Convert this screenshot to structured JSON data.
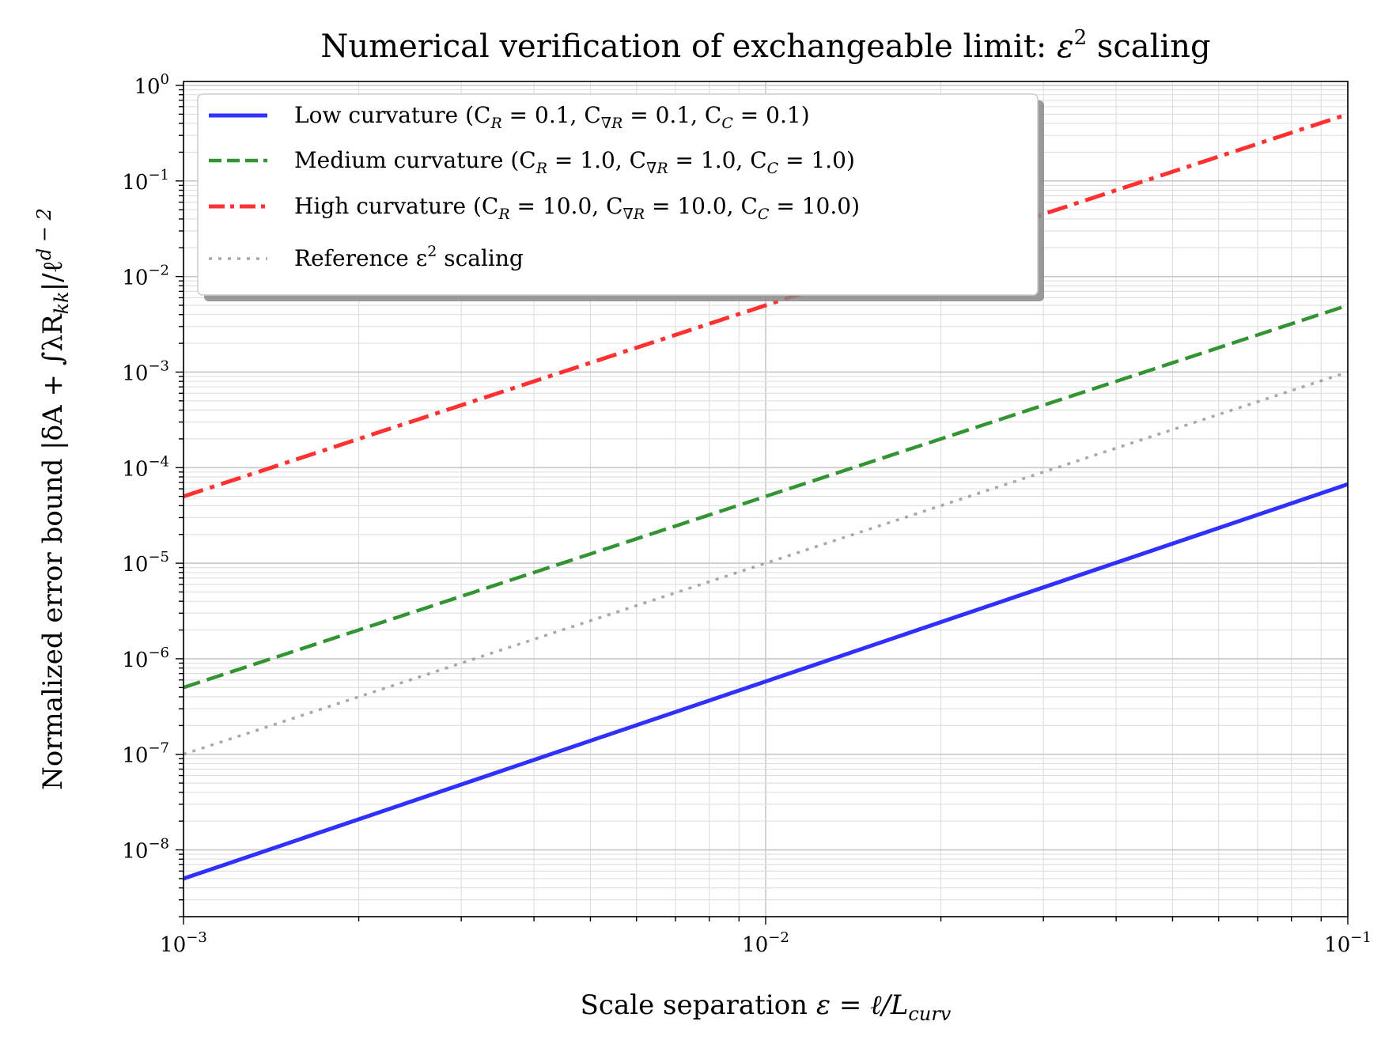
{
  "chart_data": {
    "type": "line",
    "title": "Numerical verification of exchangeable limit: ε² scaling",
    "title_parts": {
      "main": "Numerical verification of exchangeable limit: ",
      "symbol": "ε",
      "power": "2",
      "tail": " scaling"
    },
    "xlabel": "Scale separation ε = ℓ/L_curv",
    "xlabel_parts": {
      "main": "Scale separation ",
      "expr": "ε = ℓ/L",
      "sub": "curv"
    },
    "ylabel": "Normalized error bound |δA + ∫λR_kk|/ℓ^(d−2)",
    "ylabel_parts": {
      "main": "Normalized error bound |δA + ∫λR",
      "sub": "kk",
      "mid": "|/ℓ",
      "sup": "d − 2"
    },
    "xscale": "log",
    "yscale": "log",
    "xlim": [
      0.001,
      0.1
    ],
    "ylim": [
      2e-09,
      1.1
    ],
    "grid": true,
    "legend_position": "upper-left",
    "x_ticks": [
      {
        "value": 0.001,
        "base": "10",
        "exp": "−3"
      },
      {
        "value": 0.01,
        "base": "10",
        "exp": "−2"
      },
      {
        "value": 0.1,
        "base": "10",
        "exp": "−1"
      }
    ],
    "y_ticks": [
      {
        "value": 1,
        "base": "10",
        "exp": "0"
      },
      {
        "value": 0.1,
        "base": "10",
        "exp": "−1"
      },
      {
        "value": 0.01,
        "base": "10",
        "exp": "−2"
      },
      {
        "value": 0.001,
        "base": "10",
        "exp": "−3"
      },
      {
        "value": 0.0001,
        "base": "10",
        "exp": "−4"
      },
      {
        "value": 1e-05,
        "base": "10",
        "exp": "−5"
      },
      {
        "value": 1e-06,
        "base": "10",
        "exp": "−6"
      },
      {
        "value": 1e-07,
        "base": "10",
        "exp": "−7"
      },
      {
        "value": 1e-08,
        "base": "10",
        "exp": "−8"
      }
    ],
    "series": [
      {
        "name": "Low curvature (C_R = 0.1, C_∇R = 0.1, C_C = 0.1)",
        "label_parts": [
          {
            "t": "Low curvature ("
          },
          {
            "t": "C"
          },
          {
            "s": "R"
          },
          {
            "t": " = 0.1, C"
          },
          {
            "s": "∇R"
          },
          {
            "t": " = 0.1, C"
          },
          {
            "s": "C"
          },
          {
            "t": " = 0.1)"
          }
        ],
        "color": "#1f1fff",
        "style": "solid",
        "x": [
          0.001,
          0.1
        ],
        "y": [
          5e-09,
          6.7e-05
        ]
      },
      {
        "name": "Medium curvature (C_R = 1.0, C_∇R = 1.0, C_C = 1.0)",
        "label_parts": [
          {
            "t": "Medium curvature ("
          },
          {
            "t": "C"
          },
          {
            "s": "R"
          },
          {
            "t": " = 1.0, C"
          },
          {
            "s": "∇R"
          },
          {
            "t": " = 1.0, C"
          },
          {
            "s": "C"
          },
          {
            "t": " = 1.0)"
          }
        ],
        "color": "#228b22",
        "style": "dashed",
        "x": [
          0.001,
          0.1
        ],
        "y": [
          5e-07,
          0.005
        ]
      },
      {
        "name": "High curvature (C_R = 10.0, C_∇R = 10.0, C_C = 10.0)",
        "label_parts": [
          {
            "t": "High curvature ("
          },
          {
            "t": "C"
          },
          {
            "s": "R"
          },
          {
            "t": " = 10.0, C"
          },
          {
            "s": "∇R"
          },
          {
            "t": " = 10.0, C"
          },
          {
            "s": "C"
          },
          {
            "t": " = 10.0)"
          }
        ],
        "color": "#ff2020",
        "style": "dashdot",
        "x": [
          0.001,
          0.1
        ],
        "y": [
          5e-05,
          0.5
        ]
      },
      {
        "name": "Reference ε² scaling",
        "label_parts": [
          {
            "t": "Reference ε"
          },
          {
            "p": "2"
          },
          {
            "t": " scaling"
          }
        ],
        "color": "#999999",
        "style": "dotted",
        "x": [
          0.001,
          0.1
        ],
        "y": [
          1e-07,
          0.001
        ]
      }
    ]
  }
}
